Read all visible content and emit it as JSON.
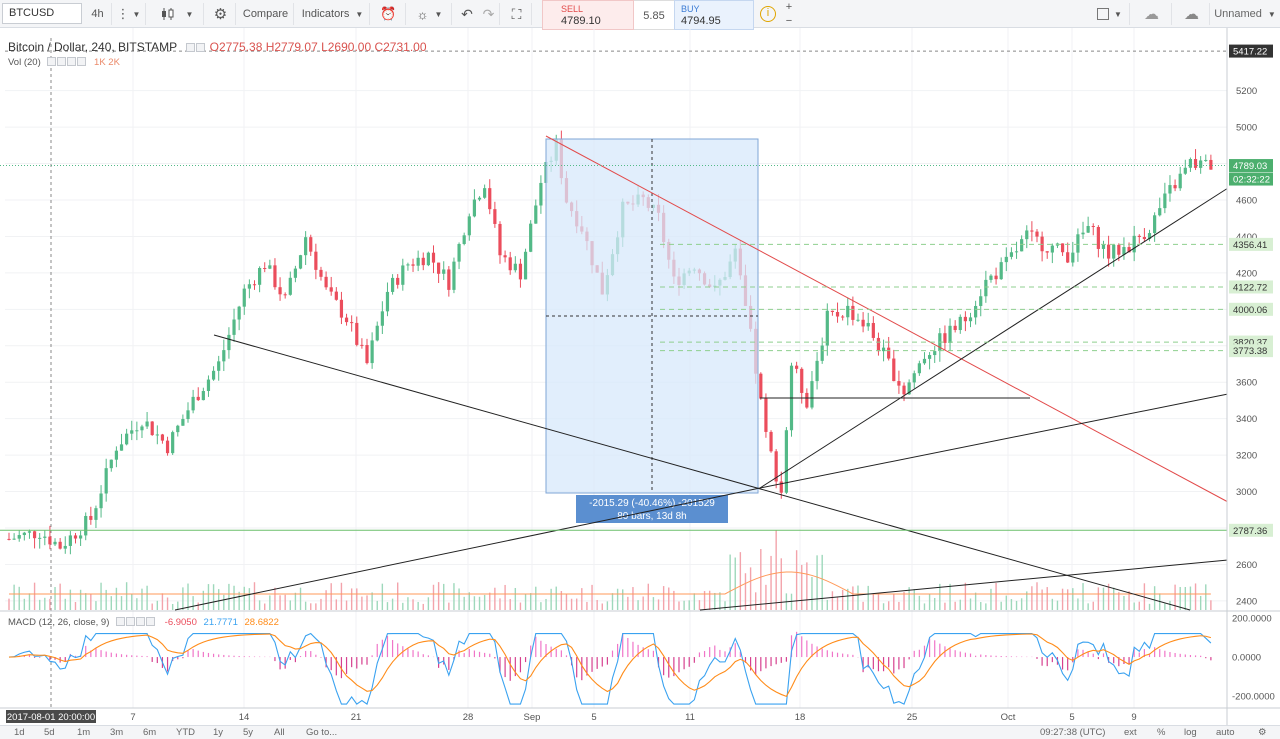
{
  "toolbar": {
    "symbol": "BTCUSD",
    "interval": "4h",
    "compare": "Compare",
    "indicators": "Indicators",
    "sell_label": "SELL",
    "sell_price": "4789.10",
    "spread": "5.85",
    "buy_label": "BUY",
    "buy_price": "4794.95",
    "layout_name": "Unnamed"
  },
  "legend": {
    "title": "Bitcoin / Dollar, 240, BITSTAMP",
    "ohlc": "O2775.38  H2779.07  L2690.00  C2731.00",
    "volume": "Vol (20)",
    "volume_marks": "1K   2K",
    "macd": "MACD (12, 26, close, 9)",
    "macd_hist": "-6.9050",
    "macd_line": "21.7771",
    "macd_signal": "28.6822"
  },
  "measure": {
    "line1": "-2015.29 (-40.46%) -201529",
    "line2": "80 bars, 13d 8h"
  },
  "colors": {
    "up": "#53b987",
    "down": "#eb4d5c",
    "macd_line": "#3aa2f0",
    "signal_line": "#ff8c1a",
    "trendline_red": "#e24a4a",
    "measure_fill": "#d7e8fb",
    "measure_label": "#5b8fd0"
  },
  "chart_data": {
    "type": "candlestick",
    "title": "Bitcoin / Dollar, 240, BITSTAMP",
    "x_ticks": [
      "7",
      "14",
      "21",
      "28",
      "Sep",
      "5",
      "11",
      "18",
      "25",
      "Oct",
      "5",
      "9"
    ],
    "crosshair_date": "2017-08-01 20:00:00",
    "y_ticks": [
      5200,
      5000,
      4800,
      4600,
      4400,
      4200,
      4000,
      3800,
      3600,
      3400,
      3200,
      3000,
      2800,
      2600,
      2400
    ],
    "ylim": [
      2350,
      5500
    ],
    "price_labels": [
      {
        "value": "5417.22",
        "price": 5417.22,
        "style": "dark"
      },
      {
        "value": "4789.03",
        "price": 4789.03,
        "style": "green"
      },
      {
        "value": "02:32:22",
        "price": 4715,
        "style": "green"
      },
      {
        "value": "4356.41",
        "price": 4356.41,
        "style": "lightgreen"
      },
      {
        "value": "4122.72",
        "price": 4122.72,
        "style": "lightgreen"
      },
      {
        "value": "4000.06",
        "price": 4000.06,
        "style": "lightgreen"
      },
      {
        "value": "3820.37",
        "price": 3820.37,
        "style": "lightgreen"
      },
      {
        "value": "3773.38",
        "price": 3773.38,
        "style": "lightgreen"
      },
      {
        "value": "2787.36",
        "price": 2787.36,
        "style": "lightgreen"
      }
    ],
    "series_anchor_prices": [
      [
        0,
        2740
      ],
      [
        6,
        2780
      ],
      [
        10,
        2700
      ],
      [
        16,
        2850
      ],
      [
        21,
        3250
      ],
      [
        26,
        3400
      ],
      [
        31,
        3250
      ],
      [
        36,
        3500
      ],
      [
        41,
        3700
      ],
      [
        46,
        4100
      ],
      [
        50,
        4250
      ],
      [
        54,
        4050
      ],
      [
        58,
        4400
      ],
      [
        62,
        4100
      ],
      [
        66,
        3950
      ],
      [
        70,
        3700
      ],
      [
        74,
        4100
      ],
      [
        78,
        4250
      ],
      [
        82,
        4300
      ],
      [
        86,
        4150
      ],
      [
        90,
        4550
      ],
      [
        93,
        4700
      ],
      [
        96,
        4300
      ],
      [
        100,
        4200
      ],
      [
        104,
        4700
      ],
      [
        107,
        4900
      ],
      [
        109,
        4600
      ],
      [
        112,
        4450
      ],
      [
        116,
        4100
      ],
      [
        120,
        4550
      ],
      [
        124,
        4600
      ],
      [
        127,
        4500
      ],
      [
        130,
        4150
      ],
      [
        134,
        4250
      ],
      [
        138,
        4100
      ],
      [
        142,
        4300
      ],
      [
        145,
        3850
      ],
      [
        148,
        3300
      ],
      [
        151,
        3000
      ],
      [
        153,
        3700
      ],
      [
        156,
        3500
      ],
      [
        160,
        3950
      ],
      [
        164,
        4000
      ],
      [
        168,
        3900
      ],
      [
        172,
        3700
      ],
      [
        175,
        3550
      ],
      [
        179,
        3750
      ],
      [
        183,
        3850
      ],
      [
        187,
        3950
      ],
      [
        191,
        4150
      ],
      [
        195,
        4250
      ],
      [
        199,
        4400
      ],
      [
        203,
        4350
      ],
      [
        207,
        4300
      ],
      [
        211,
        4450
      ],
      [
        215,
        4300
      ],
      [
        219,
        4350
      ],
      [
        223,
        4450
      ],
      [
        227,
        4650
      ],
      [
        231,
        4800
      ],
      [
        234,
        4790
      ]
    ],
    "macd_ticks": [
      "200.0000",
      "0.0000",
      "-200.0000"
    ],
    "macd_ylim": [
      -260,
      230
    ]
  },
  "time_ranges": [
    "1d",
    "5d",
    "1m",
    "3m",
    "6m",
    "YTD",
    "1y",
    "5y",
    "All"
  ],
  "goto": "Go to...",
  "clock": "09:27:38 (UTC)",
  "scale_opts": [
    "ext",
    "%",
    "log",
    "auto"
  ]
}
